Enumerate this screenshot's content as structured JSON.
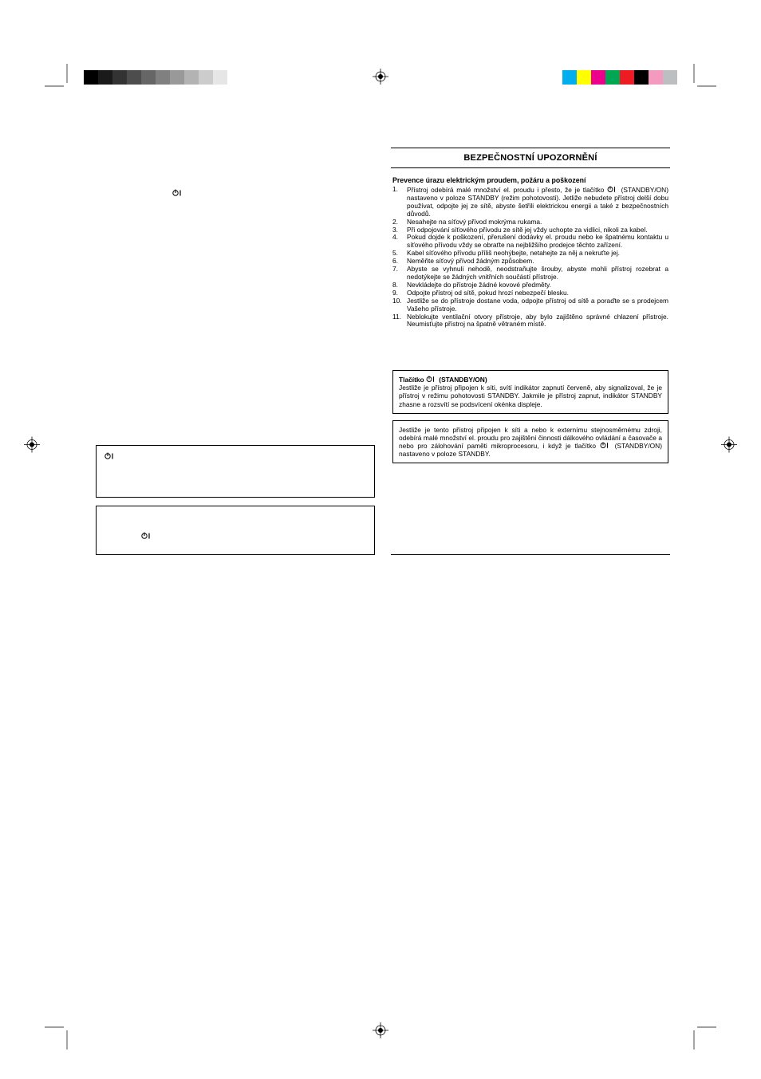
{
  "colorbars": {
    "left": [
      "#000000",
      "#1a1a1a",
      "#333333",
      "#4d4d4d",
      "#666666",
      "#808080",
      "#999999",
      "#b3b3b3",
      "#cccccc",
      "#e6e6e6",
      "#ffffff"
    ],
    "right": [
      "#00aeef",
      "#ffff00",
      "#ec008c",
      "#00a651",
      "#ed1c24",
      "#000000",
      "#f49ac1",
      "#bcbec0"
    ]
  },
  "title": "BEZPEČNOSTNÍ UPOZORNĚNÍ",
  "preventionHeading": "Prevence úrazu elektrickým proudem, požáru a poškození",
  "items": [
    {
      "n": "1.",
      "t": "Přístroj odebírá malé množství el. proudu i přesto, že je tlačítko <ICON> (STANDBY/ON) nastaveno v poloze STANDBY (režim pohotovosti). Jetliže nebudete přístroj delší dobu používat, odpojte jej ze sítě, abyste šetřili elektrickou energii a také z bezpečnostních důvodů."
    },
    {
      "n": "2.",
      "t": "Nesahejte na síťový přívod mokrýma rukama."
    },
    {
      "n": "3.",
      "t": "Při odpojování síťového přívodu ze sítě jej vždy uchopte za vidlici, nikoli za kabel."
    },
    {
      "n": "4.",
      "t": "Pokud dojde k poškození, přerušení dodávky el. proudu nebo ke špatnému kontaktu u síťového přívodu vždy se obraťte na nejbližšího prodejce těchto zařízení."
    },
    {
      "n": "5.",
      "t": "Kabel síťového přívodu příliš neohýbejte, netahejte za něj a nekruťte jej."
    },
    {
      "n": "6.",
      "t": "Neměňte síťový přívod žádným způsobem."
    },
    {
      "n": "7.",
      "t": "Abyste se vyhnuli nehodě, neodstraňujte šrouby, abyste mohli přístroj rozebrat a nedotýkejte se žádných vnitřních součástí přístroje."
    },
    {
      "n": "8.",
      "t": "Nevkládejte do přístroje žádné kovové předměty."
    },
    {
      "n": "9.",
      "t": "Odpojte přístroj od sítě, pokud hrozí nebezpečí blesku."
    },
    {
      "n": "10.",
      "t": "Jestliže se do přístroje dostane voda, odpojte přístroj od sítě a poraďte se s prodejcem Vašeho přístroje."
    },
    {
      "n": "11.",
      "t": "Neblokujte ventilační otvory přístroje, aby bylo zajištěno správné chlazení přístroje. Neumisťujte přístroj na špatně větraném místě."
    }
  ],
  "box1": {
    "head": "Tlačítko <ICON> (STANDBY/ON)",
    "body": "Jestliže je přístroj připojen k síti, svítí indikátor zapnutí červeně, aby signalizoval, že je přístroj v režimu pohotovosti STANDBY. Jakmile je přístroj zapnut, indikátor STANDBY zhasne a rozsvítí se podsvícení okénka displeje."
  },
  "box2": "Jestliže je tento přístroj připojen k síti a nebo k externímu stejnosměrnému zdroji, odebírá malé množství el. proudu pro zajištění činnosti dálkového ovládání a časovače a nebo pro zálohování paměti mikroprocesoru, i když je tlačítko <ICON> (STANDBY/ON) nastaveno v poloze STANDBY.",
  "iconSvg": "standby"
}
